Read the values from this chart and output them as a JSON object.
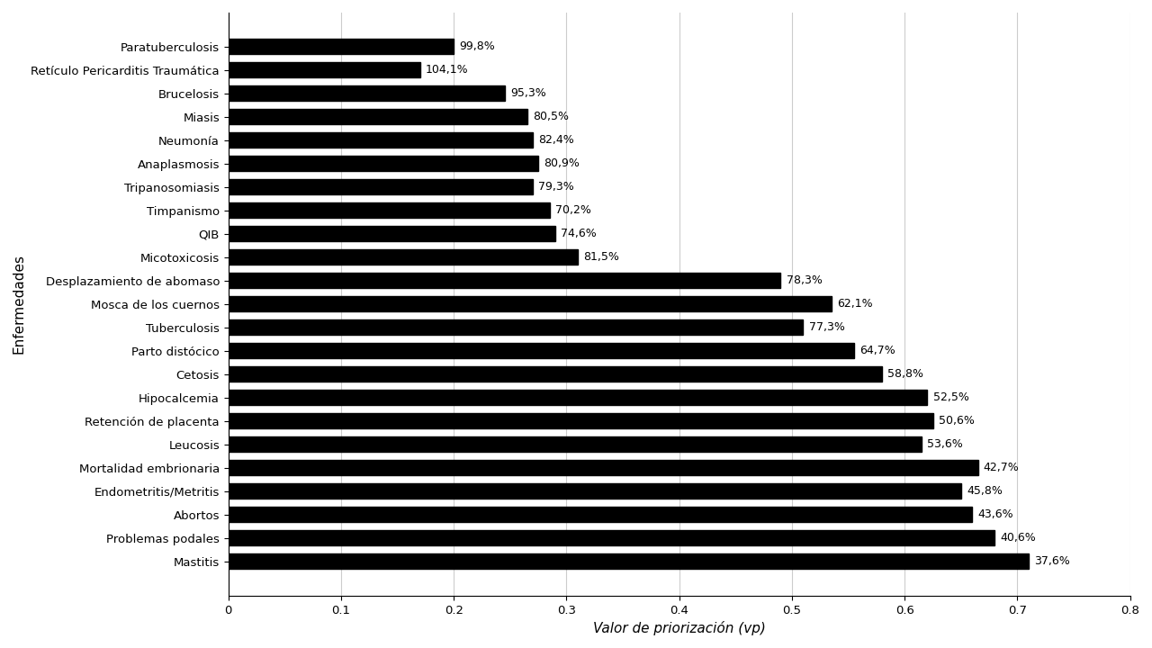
{
  "xlabel": "Valor de priorización (vp)",
  "ylabel": "Enfermedades",
  "xlim": [
    0,
    0.8
  ],
  "xticks": [
    0,
    0.1,
    0.2,
    0.3,
    0.4,
    0.5,
    0.6,
    0.7,
    0.8
  ],
  "categories": [
    "Mastitis",
    "Problemas podales",
    "Abortos",
    "Endometritis/Metritis",
    "Mortalidad embrionaria",
    "Leucosis",
    "Retención de placenta",
    "Hipocalcemia",
    "Cetosis",
    "Parto distócico",
    "Tuberculosis",
    "Mosca de los cuernos",
    "Desplazamiento de abomaso",
    "Micotoxicosis",
    "QIB",
    "Timpanismo",
    "Tripanosomiasis",
    "Anaplasmosis",
    "Neumonía",
    "Miasis",
    "Brucelosis",
    "Retículo Pericarditis Traumática",
    "Paratuberculosis"
  ],
  "values": [
    0.71,
    0.68,
    0.66,
    0.65,
    0.665,
    0.615,
    0.625,
    0.62,
    0.58,
    0.555,
    0.51,
    0.535,
    0.49,
    0.31,
    0.29,
    0.285,
    0.27,
    0.275,
    0.27,
    0.265,
    0.245,
    0.17,
    0.2
  ],
  "labels": [
    "37,6%",
    "40,6%",
    "43,6%",
    "45,8%",
    "42,7%",
    "53,6%",
    "50,6%",
    "52,5%",
    "58,8%",
    "64,7%",
    "77,3%",
    "62,1%",
    "78,3%",
    "81,5%",
    "74,6%",
    "70,2%",
    "79,3%",
    "80,9%",
    "82,4%",
    "80,5%",
    "95,3%",
    "104,1%",
    "99,8%"
  ],
  "bar_color": "#000000",
  "background_color": "#ffffff",
  "grid_color": "#cccccc",
  "label_fontsize": 9,
  "tick_fontsize": 9.5,
  "axis_label_fontsize": 11
}
